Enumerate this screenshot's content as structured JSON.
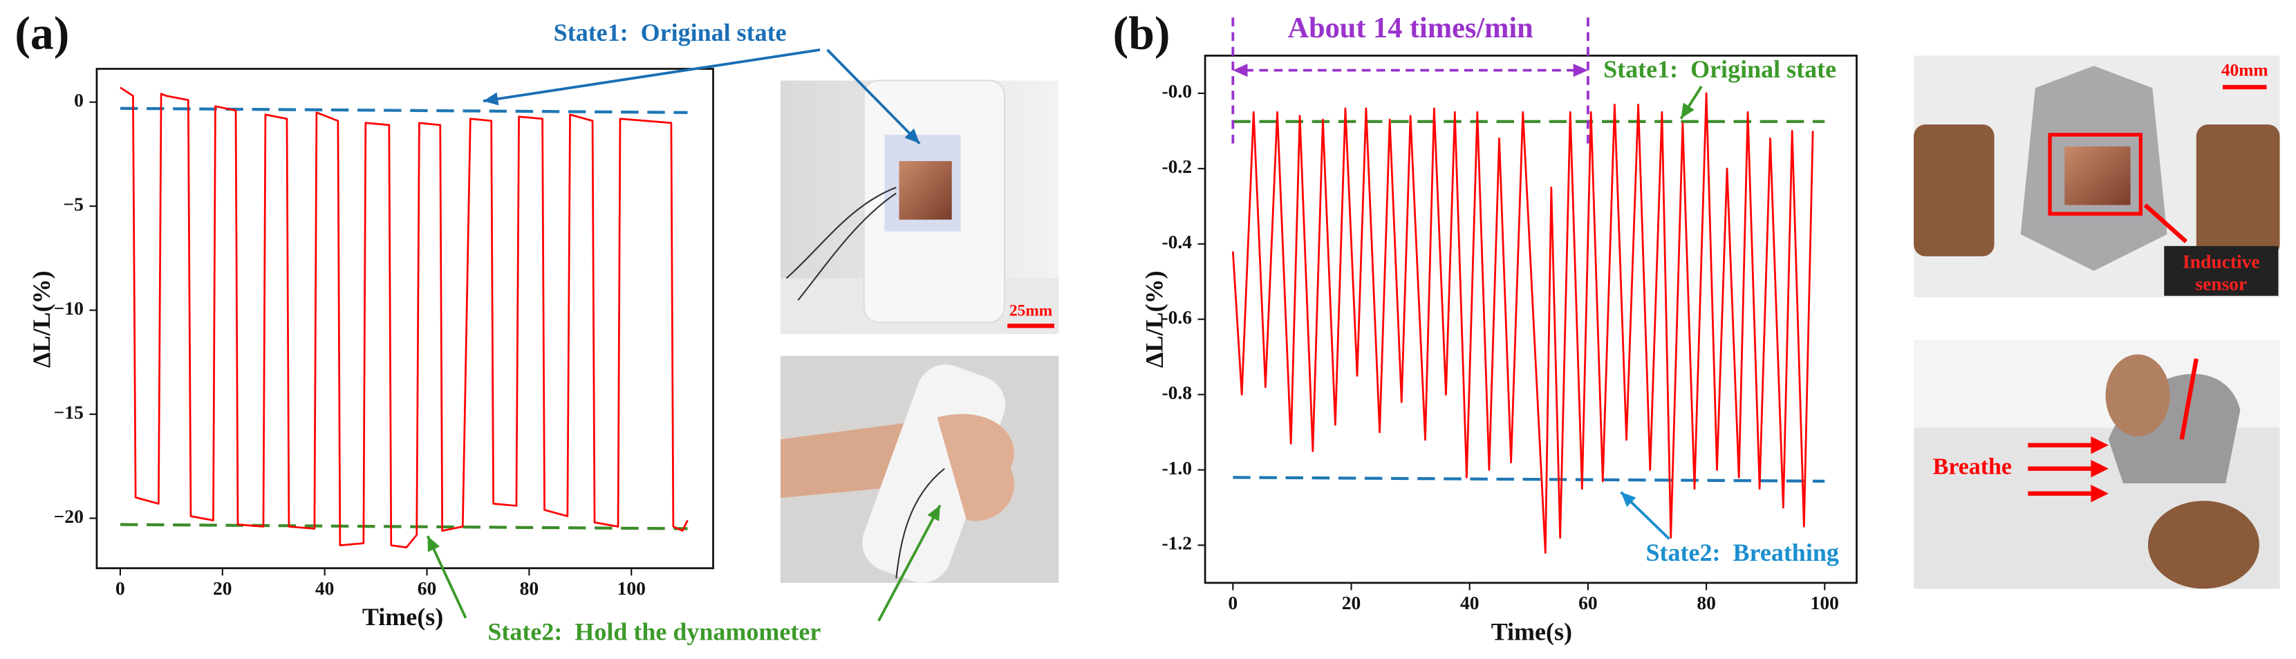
{
  "chart_data": [
    {
      "type": "line",
      "panel_label": "(a)",
      "xlabel": "Time(s)",
      "ylabel": "ΔL/L(%)",
      "xlim": [
        -4.6,
        116
      ],
      "ylim": [
        -22.4,
        1.6
      ],
      "xticks": [
        0,
        20,
        40,
        60,
        80,
        100
      ],
      "yticks": [
        0,
        {
          "value": -5,
          "label": "−5"
        },
        {
          "value": -10,
          "label": "−10"
        },
        {
          "value": -15,
          "label": "−15"
        },
        {
          "value": -20,
          "label": "−20"
        }
      ],
      "x": [
        0,
        2.5,
        3.0,
        7.5,
        8.0,
        9,
        13.3,
        13.8,
        18.2,
        18.6,
        22.6,
        23.0,
        28,
        28.4,
        32.6,
        33.0,
        38,
        38.4,
        42.6,
        43.0,
        47.6,
        48.0,
        52.6,
        53.0,
        56,
        58,
        58.5,
        62.6,
        63.0,
        67,
        68.5,
        72.6,
        73.0,
        77.5,
        78.0,
        82.6,
        83.0,
        87.5,
        88.0,
        92.4,
        92.8,
        97.4,
        97.8,
        107.8,
        108.2,
        110,
        111
      ],
      "series": [
        {
          "color": "#ff0000",
          "values": [
            0.7,
            0.3,
            -19.0,
            -19.3,
            0.4,
            0.3,
            0.1,
            -19.9,
            -20.1,
            -0.2,
            -0.4,
            -20.3,
            -20.4,
            -0.6,
            -0.8,
            -20.4,
            -20.5,
            -0.5,
            -0.9,
            -21.3,
            -21.2,
            -1.0,
            -1.1,
            -21.3,
            -21.4,
            -20.8,
            -1.0,
            -1.1,
            -20.6,
            -20.4,
            -0.8,
            -0.9,
            -19.3,
            -19.4,
            -0.7,
            -0.8,
            -19.6,
            -19.9,
            -0.6,
            -0.9,
            -20.2,
            -20.4,
            -0.8,
            -1.0,
            -20.4,
            -20.6,
            -20.1
          ]
        }
      ],
      "reference_lines": [
        {
          "x": [
            0,
            111
          ],
          "y": [
            -0.3,
            -0.5
          ],
          "color": "#1f77b4"
        },
        {
          "x": [
            0,
            111
          ],
          "y": [
            -20.3,
            -20.5
          ],
          "color": "#3c8c2a"
        }
      ],
      "annotations": [
        {
          "text": "State1:  Original state",
          "color": "#1a6fb5"
        },
        {
          "text": "State2:  Hold the dynamometer",
          "color": "#3c9a2a"
        }
      ]
    },
    {
      "type": "line",
      "panel_label": "(b)",
      "xlabel": "Time(s)",
      "ylabel": "ΔL/L(%)",
      "xlim": [
        -4.7,
        105.4
      ],
      "ylim": [
        -1.3,
        0.1
      ],
      "xticks": [
        0,
        20,
        40,
        60,
        80,
        100
      ],
      "yticks": [
        {
          "value": 0,
          "label": "-0.0"
        },
        {
          "value": -0.2,
          "label": "-0.2"
        },
        {
          "value": -0.4,
          "label": "-0.4"
        },
        {
          "value": -0.6,
          "label": "-0.6"
        },
        {
          "value": -0.8,
          "label": "-0.8"
        },
        {
          "value": -1.0,
          "label": "-1.0"
        },
        {
          "value": -1.2,
          "label": "-1.2"
        }
      ],
      "x": [
        0,
        1.5,
        3.5,
        5.5,
        7.5,
        9.8,
        11.3,
        13.5,
        15.2,
        17.3,
        19,
        21,
        22.5,
        24.8,
        26.5,
        28.5,
        30,
        32.5,
        34,
        36,
        37.5,
        39.5,
        41.3,
        43.3,
        45,
        47,
        49,
        52.8,
        53.8,
        55.3,
        57,
        59,
        60.5,
        62.5,
        64.5,
        66.5,
        68.5,
        70.5,
        72.5,
        74,
        76,
        78,
        80,
        81.8,
        83.5,
        85.5,
        87,
        89,
        90.8,
        93,
        94.5,
        96.5,
        98
      ],
      "series": [
        {
          "color": "#ff0000",
          "values": [
            -0.42,
            -0.8,
            -0.05,
            -0.78,
            -0.05,
            -0.93,
            -0.06,
            -0.95,
            -0.07,
            -0.88,
            -0.04,
            -0.75,
            -0.04,
            -0.9,
            -0.07,
            -0.82,
            -0.06,
            -0.92,
            -0.04,
            -0.8,
            -0.05,
            -1.02,
            -0.05,
            -1.0,
            -0.12,
            -0.98,
            -0.05,
            -1.22,
            -0.25,
            -1.18,
            -0.05,
            -1.05,
            -0.05,
            -1.03,
            -0.03,
            -0.92,
            -0.03,
            -1.0,
            -0.05,
            -1.18,
            -0.08,
            -1.05,
            -0.0,
            -1.0,
            -0.2,
            -1.02,
            -0.05,
            -1.05,
            -0.12,
            -1.1,
            -0.1,
            -1.15,
            -0.1
          ]
        }
      ],
      "reference_lines": [
        {
          "x": [
            0,
            100
          ],
          "y": [
            -0.075,
            -0.075
          ],
          "color": "#3c8c2a"
        },
        {
          "x": [
            0,
            100
          ],
          "y": [
            -1.02,
            -1.03
          ],
          "color": "#1f77b4"
        }
      ],
      "annotations": [
        {
          "text": "State1:  Original state",
          "color": "#3c9a2a"
        },
        {
          "text": "State2:  Breathing",
          "color": "#1a8fcf"
        }
      ],
      "span": {
        "x": [
          0,
          60
        ],
        "text": "About 14 times/min",
        "color": "#9933cc"
      }
    }
  ],
  "photos": {
    "scale_bar_a": "25mm",
    "scale_bar_b": "40mm",
    "sensor_label": [
      "Inductive",
      "sensor"
    ],
    "breathe_label": "Breathe"
  }
}
